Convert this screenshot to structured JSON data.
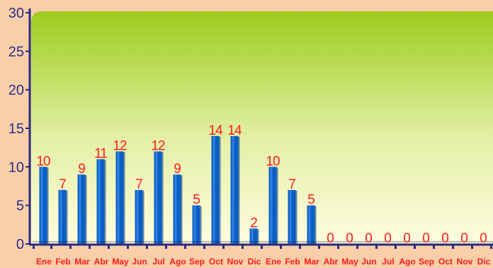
{
  "chart_data": {
    "type": "bar",
    "categories": [
      "Ene",
      "Feb",
      "Mar",
      "Abr",
      "May",
      "Jun",
      "Jul",
      "Ago",
      "Sep",
      "Oct",
      "Nov",
      "Dic",
      "Ene",
      "Feb",
      "Mar",
      "Abr",
      "May",
      "Jun",
      "Jul",
      "Ago",
      "Sep",
      "Oct",
      "Nov",
      "Dic"
    ],
    "values": [
      10,
      7,
      9,
      11,
      12,
      7,
      12,
      9,
      5,
      14,
      14,
      2,
      10,
      7,
      5,
      0,
      0,
      0,
      0,
      0,
      0,
      0,
      0,
      0
    ],
    "ylim": [
      0,
      30
    ],
    "yticks": [
      0,
      5,
      10,
      15,
      20,
      25,
      30
    ],
    "grid": false,
    "colors": {
      "bar": "#0a5fc4",
      "bar_highlight": "#3f8ff0",
      "bar_shadow": "#083e86",
      "axis": "#2a2a80",
      "tick_label": "#2b2c8c",
      "data_label": "#ff1a1a",
      "category_label": "#ff1a1a",
      "page_bg": "#f8cfa8",
      "plot_top": "#9ccc1e",
      "plot_bottom": "#fffce0"
    }
  }
}
